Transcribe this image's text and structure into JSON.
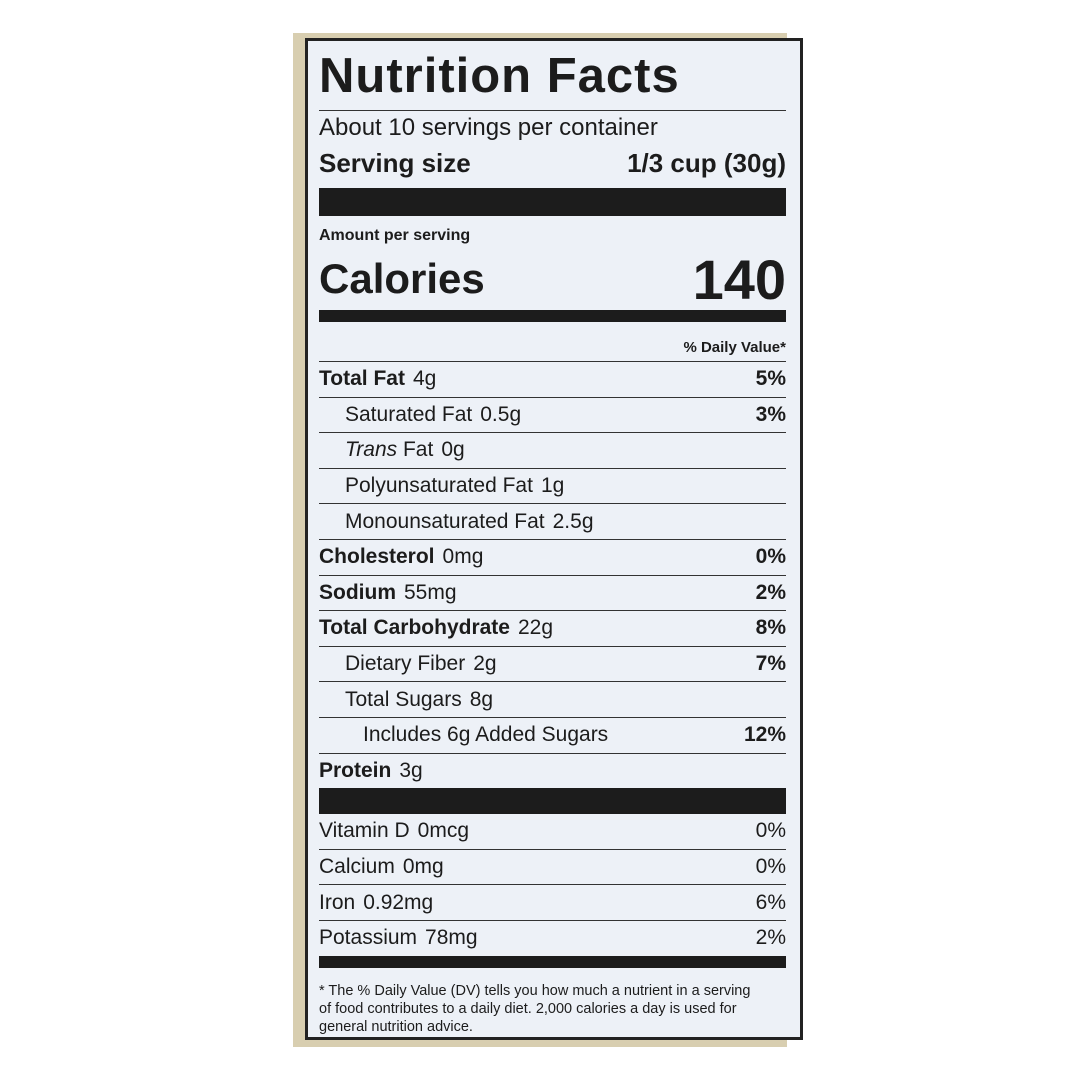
{
  "title": "Nutrition Facts",
  "servings": "About 10 servings per container",
  "serving_size": {
    "label": "Serving size",
    "value": "1/3 cup (30g)"
  },
  "amount_per_serving": "Amount per serving",
  "calories": {
    "label": "Calories",
    "value": "140"
  },
  "dv_header": "% Daily Value*",
  "nutrients": [
    {
      "name": "Total Fat",
      "amount": "4g",
      "dv": "5%"
    },
    {
      "name": "Saturated Fat",
      "amount": "0.5g",
      "dv": "3%"
    },
    {
      "name": "Trans Fat",
      "amount": "0g"
    },
    {
      "name": "Polyunsaturated Fat",
      "amount": "1g"
    },
    {
      "name": "Monounsaturated Fat",
      "amount": "2.5g"
    },
    {
      "name": "Cholesterol",
      "amount": "0mg",
      "dv": "0%"
    },
    {
      "name": "Sodium",
      "amount": "55mg",
      "dv": "2%"
    },
    {
      "name": "Total Carbohydrate",
      "amount": "22g",
      "dv": "8%"
    },
    {
      "name": "Dietary Fiber",
      "amount": "2g",
      "dv": "7%"
    },
    {
      "name": "Total Sugars",
      "amount": "8g"
    },
    {
      "name": "Includes 6g Added Sugars",
      "dv": "12%"
    },
    {
      "name": "Protein",
      "amount": "3g"
    }
  ],
  "vitamins": [
    {
      "name": "Vitamin D",
      "amount": "0mcg",
      "dv": "0%"
    },
    {
      "name": "Calcium",
      "amount": "0mg",
      "dv": "0%"
    },
    {
      "name": "Iron",
      "amount": "0.92mg",
      "dv": "6%"
    },
    {
      "name": "Potassium",
      "amount": "78mg",
      "dv": "2%"
    }
  ],
  "footnote": "* The % Daily Value (DV) tells you how much a nutrient in a serving of food contributes to a daily diet. 2,000 calories a day is used for general nutrition advice."
}
